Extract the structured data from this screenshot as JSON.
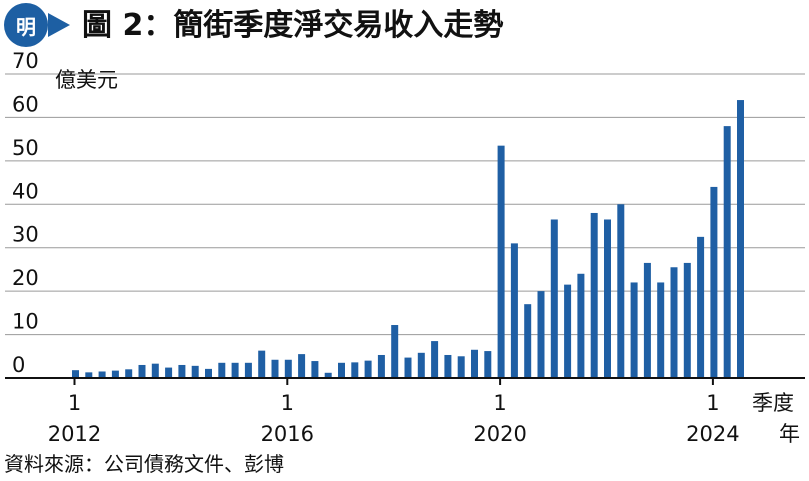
{
  "header": {
    "logo_text": "明",
    "title": "圖 2：簡街季度淨交易收入走勢",
    "colors": {
      "brand": "#1d5fa3",
      "bar": "#1f5fa4"
    }
  },
  "source": "資料來源：公司債務文件、彭博",
  "chart_data": {
    "type": "bar",
    "unit_label": "億美元",
    "ylim": [
      0,
      70
    ],
    "yticks": [
      "0",
      "10",
      "20",
      "30",
      "40",
      "50",
      "60",
      "70"
    ],
    "grid": true,
    "x_axis_label_line1": "季度",
    "x_axis_label_line2": "年",
    "x_tick_quarter_labels": [
      "1",
      "1",
      "1",
      "1"
    ],
    "x_tick_year_labels": [
      "2012",
      "2016",
      "2020",
      "2024"
    ],
    "x_tick_bar_index": [
      0,
      16,
      32,
      48
    ],
    "categories": [
      "2012Q1",
      "2012Q2",
      "2012Q3",
      "2012Q4",
      "2013Q1",
      "2013Q2",
      "2013Q3",
      "2013Q4",
      "2014Q1",
      "2014Q2",
      "2014Q3",
      "2014Q4",
      "2015Q1",
      "2015Q2",
      "2015Q3",
      "2015Q4",
      "2016Q1",
      "2016Q2",
      "2016Q3",
      "2016Q4",
      "2017Q1",
      "2017Q2",
      "2017Q3",
      "2017Q4",
      "2018Q1",
      "2018Q2",
      "2018Q3",
      "2018Q4",
      "2019Q1",
      "2019Q2",
      "2019Q3",
      "2019Q4",
      "2020Q1",
      "2020Q2",
      "2020Q3",
      "2020Q4",
      "2021Q1",
      "2021Q2",
      "2021Q3",
      "2021Q4",
      "2022Q1",
      "2022Q2",
      "2022Q3",
      "2022Q4",
      "2023Q1",
      "2023Q2",
      "2023Q3",
      "2023Q4",
      "2024Q1",
      "2024Q2",
      "2024Q3"
    ],
    "values": [
      1.8,
      1.3,
      1.5,
      1.7,
      2.0,
      3.0,
      3.3,
      2.4,
      3.0,
      2.8,
      2.1,
      3.5,
      3.5,
      3.5,
      6.3,
      4.2,
      4.2,
      5.5,
      3.9,
      1.2,
      3.5,
      3.6,
      4.0,
      5.3,
      12.2,
      4.7,
      5.8,
      8.5,
      5.3,
      5.0,
      6.5,
      6.2,
      53.5,
      31.0,
      17.0,
      20.0,
      36.5,
      21.5,
      24.0,
      38.0,
      36.5,
      40.0,
      22.0,
      26.5,
      22.0,
      25.5,
      26.5,
      32.5,
      44.0,
      58.0,
      64.0
    ]
  }
}
